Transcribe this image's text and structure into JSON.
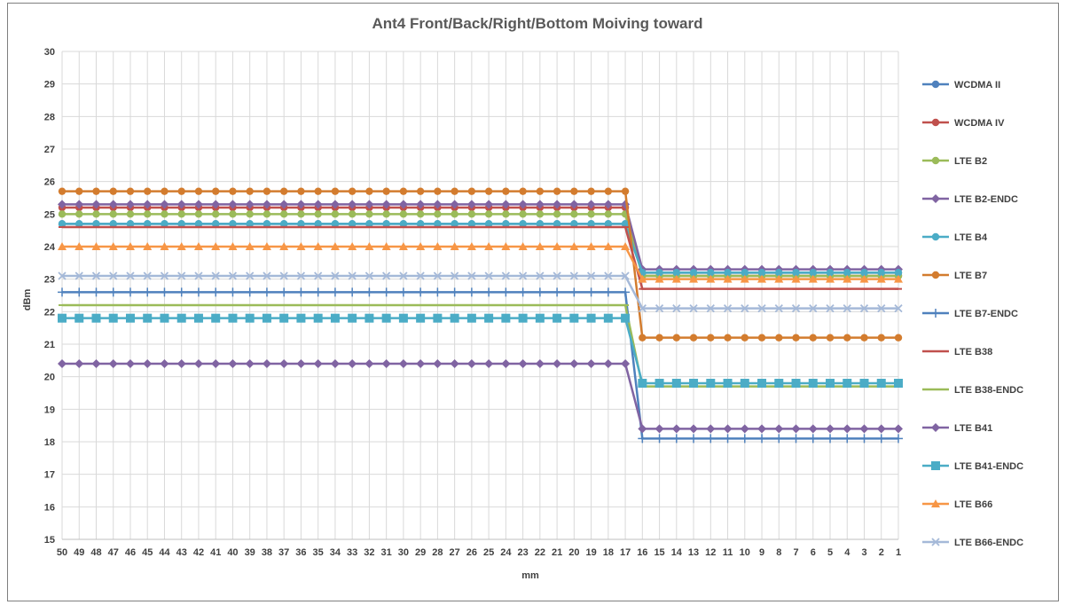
{
  "chart_data": {
    "type": "line",
    "title": "Ant4 Front/Back/Right/Bottom Moiving toward",
    "xlabel": "mm",
    "ylabel": "dBm",
    "ylim": [
      15,
      30
    ],
    "yticks": [
      "15",
      "16",
      "17",
      "18",
      "19",
      "20",
      "21",
      "22",
      "23",
      "24",
      "25",
      "26",
      "27",
      "28",
      "29",
      "30"
    ],
    "x": [
      "50",
      "49",
      "48",
      "47",
      "46",
      "45",
      "44",
      "43",
      "42",
      "41",
      "40",
      "39",
      "38",
      "37",
      "36",
      "35",
      "34",
      "33",
      "32",
      "31",
      "30",
      "29",
      "28",
      "27",
      "26",
      "25",
      "24",
      "23",
      "22",
      "21",
      "20",
      "19",
      "18",
      "17",
      "16",
      "15",
      "14",
      "13",
      "12",
      "11",
      "10",
      "9",
      "8",
      "7",
      "6",
      "5",
      "4",
      "3",
      "2",
      "1"
    ],
    "grid": true,
    "legend_position": "right",
    "series": [
      {
        "name": "WCDMA II",
        "color": "#4f81bd",
        "marker": "circle",
        "before": 24.7,
        "after": 23.2
      },
      {
        "name": "WCDMA IV",
        "color": "#c0504d",
        "marker": "circle",
        "before": 25.2,
        "after": 23.1
      },
      {
        "name": "LTE B2",
        "color": "#9bbb59",
        "marker": "circle",
        "before": 25.0,
        "after": 23.1
      },
      {
        "name": "LTE B2-ENDC",
        "color": "#8064a2",
        "marker": "diamond",
        "before": 25.3,
        "after": 23.3
      },
      {
        "name": "LTE B4",
        "color": "#4bacc6",
        "marker": "circle",
        "before": 24.7,
        "after": 23.2
      },
      {
        "name": "LTE B7",
        "color": "#d37c2e",
        "marker": "circle",
        "before": 25.7,
        "after": 21.2
      },
      {
        "name": "LTE B7-ENDC",
        "color": "#4f81bd",
        "marker": "plus",
        "before": 22.6,
        "after": 18.1
      },
      {
        "name": "LTE B38",
        "color": "#c0504d",
        "marker": "dash",
        "before": 24.6,
        "after": 22.7
      },
      {
        "name": "LTE B38-ENDC",
        "color": "#9bbb59",
        "marker": "dash",
        "before": 22.2,
        "after": 19.7
      },
      {
        "name": "LTE B41",
        "color": "#8064a2",
        "marker": "diamond",
        "before": 20.4,
        "after": 18.4
      },
      {
        "name": "LTE B41-ENDC",
        "color": "#4bacc6",
        "marker": "square",
        "before": 21.8,
        "after": 19.8
      },
      {
        "name": "LTE B66",
        "color": "#f79646",
        "marker": "triangle",
        "before": 24.0,
        "after": 23.0
      },
      {
        "name": "LTE B66-ENDC",
        "color": "#a5b9d8",
        "marker": "x",
        "before": 23.1,
        "after": 22.1
      }
    ],
    "step_after_x": "17"
  }
}
